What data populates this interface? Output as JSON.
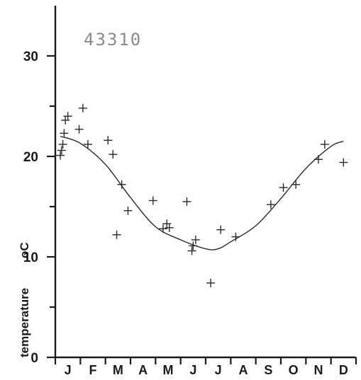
{
  "chart_data": {
    "type": "scatter",
    "title": "43310",
    "ylabel": "temperature",
    "ylabel_unit": "oC",
    "ylim": [
      0,
      35
    ],
    "yticks": [
      0,
      10,
      20,
      30
    ],
    "xlim": [
      0,
      12
    ],
    "categories": [
      "J",
      "F",
      "M",
      "A",
      "M",
      "J",
      "J",
      "A",
      "S",
      "O",
      "N",
      "D"
    ],
    "points": [
      {
        "x": 0.2,
        "y": 20.1
      },
      {
        "x": 0.25,
        "y": 20.6
      },
      {
        "x": 0.3,
        "y": 21.2
      },
      {
        "x": 0.35,
        "y": 22.3
      },
      {
        "x": 0.4,
        "y": 23.6
      },
      {
        "x": 0.5,
        "y": 24.0
      },
      {
        "x": 0.95,
        "y": 22.7
      },
      {
        "x": 1.1,
        "y": 24.8
      },
      {
        "x": 1.3,
        "y": 21.2
      },
      {
        "x": 2.1,
        "y": 21.6
      },
      {
        "x": 2.3,
        "y": 20.2
      },
      {
        "x": 2.45,
        "y": 12.2
      },
      {
        "x": 2.65,
        "y": 17.2
      },
      {
        "x": 2.9,
        "y": 14.6
      },
      {
        "x": 3.9,
        "y": 15.6
      },
      {
        "x": 4.3,
        "y": 12.8
      },
      {
        "x": 4.45,
        "y": 13.3
      },
      {
        "x": 4.55,
        "y": 12.9
      },
      {
        "x": 5.25,
        "y": 15.5
      },
      {
        "x": 5.45,
        "y": 10.6
      },
      {
        "x": 5.5,
        "y": 11.1
      },
      {
        "x": 5.6,
        "y": 11.7
      },
      {
        "x": 6.2,
        "y": 7.4
      },
      {
        "x": 6.6,
        "y": 12.7
      },
      {
        "x": 7.2,
        "y": 12.0
      },
      {
        "x": 8.6,
        "y": 15.2
      },
      {
        "x": 9.1,
        "y": 16.9
      },
      {
        "x": 9.6,
        "y": 17.2
      },
      {
        "x": 10.5,
        "y": 19.7
      },
      {
        "x": 10.75,
        "y": 21.2
      },
      {
        "x": 11.5,
        "y": 19.4
      }
    ],
    "fit_curve": [
      {
        "x": 0.2,
        "y": 22.0
      },
      {
        "x": 1.0,
        "y": 21.3
      },
      {
        "x": 2.0,
        "y": 19.2
      },
      {
        "x": 3.0,
        "y": 15.9
      },
      {
        "x": 4.0,
        "y": 13.0
      },
      {
        "x": 5.0,
        "y": 11.7
      },
      {
        "x": 6.0,
        "y": 10.8
      },
      {
        "x": 6.5,
        "y": 10.8
      },
      {
        "x": 7.0,
        "y": 11.5
      },
      {
        "x": 8.0,
        "y": 13.1
      },
      {
        "x": 9.0,
        "y": 15.8
      },
      {
        "x": 10.0,
        "y": 18.8
      },
      {
        "x": 11.0,
        "y": 21.0
      },
      {
        "x": 11.5,
        "y": 21.5
      }
    ],
    "grid": false,
    "colors": {
      "ink": "#1a1a1a",
      "markers": "#2a2a2a",
      "station_label": "#8a8a8a"
    }
  }
}
